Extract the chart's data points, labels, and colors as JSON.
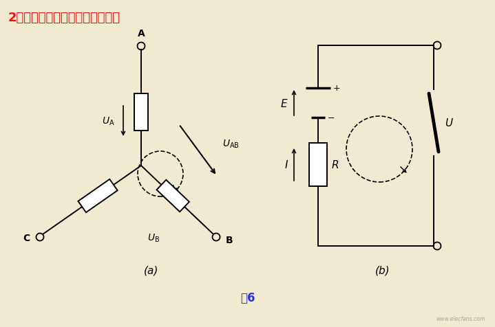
{
  "title": "2、基尔霍夫电压定律的推广应用",
  "title_color": "#EE1111",
  "bg_color": "#F0EAD0",
  "caption": "图6",
  "caption_color": "#3333CC",
  "label_a": "(a)",
  "label_b": "(b)"
}
